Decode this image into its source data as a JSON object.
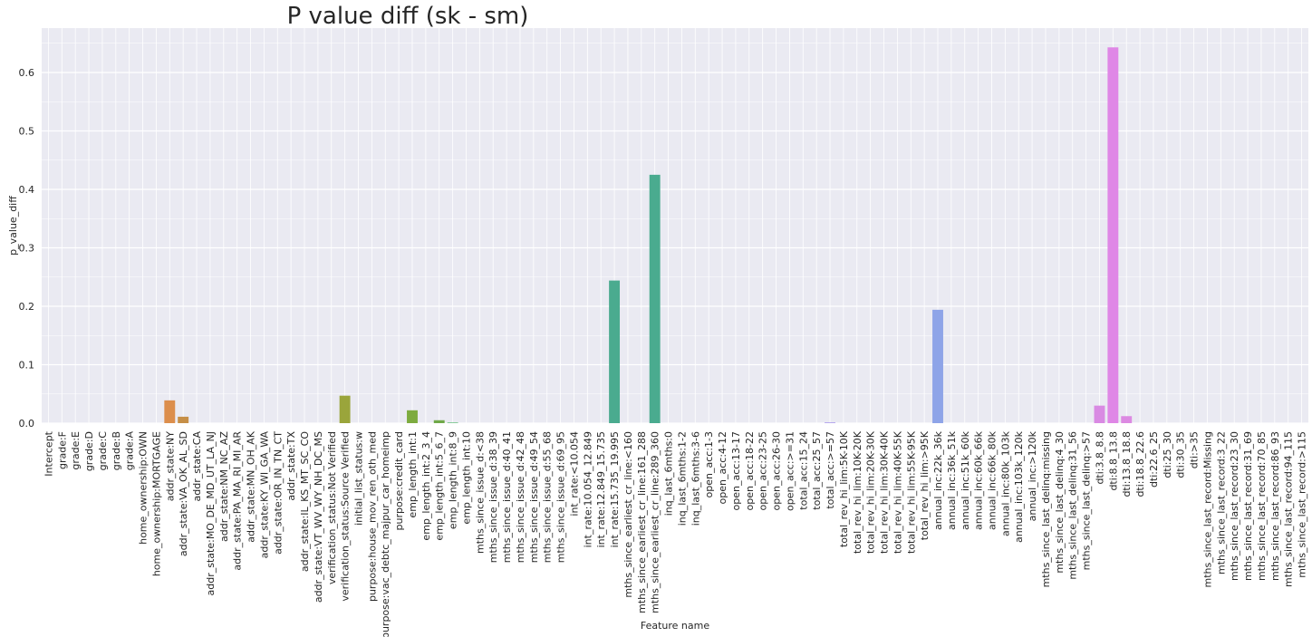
{
  "chart_data": {
    "type": "bar",
    "title": "P value diff (sk - sm)",
    "xlabel": "Feature name",
    "ylabel": "p_value_diff",
    "ylim": [
      0,
      0.68
    ],
    "yticks": [
      "0.0",
      "0.1",
      "0.2",
      "0.3",
      "0.4",
      "0.5",
      "0.6"
    ],
    "grid": true,
    "categories": [
      "Intercept",
      "grade:F",
      "grade:E",
      "grade:D",
      "grade:C",
      "grade:B",
      "grade:A",
      "home_ownership:OWN",
      "home_ownership:MORTGAGE",
      "addr_state:NY",
      "addr_state:VA_OK_AL_SD",
      "addr_state:CA",
      "addr_state:MO_DE_MD_UT_LA_NJ",
      "addr_state:NM_NC_AZ",
      "addr_state:PA_MA_RI_MI_AR",
      "addr_state:MN_OH_AK",
      "addr_state:KY_WI_GA_WA",
      "addr_state:OR_IN_TN_CT",
      "addr_state:TX",
      "addr_state:IL_KS_MT_SC_CO",
      "addr_state:VT_WV_WY_NH_DC_MS",
      "verification_status:Not Verified",
      "verification_status:Source Verified",
      "initial_list_status:w",
      "purpose:house_mov_ren_oth_med",
      "purpose:vac_debtc_majpur_car_homeimp",
      "purpose:credit_card",
      "emp_length_int:1",
      "emp_length_int:2_3_4",
      "emp_length_int:5_6_7",
      "emp_length_int:8_9",
      "emp_length_int:10",
      "mths_since_issue_d:<38",
      "mths_since_issue_d:38_39",
      "mths_since_issue_d:40_41",
      "mths_since_issue_d:42_48",
      "mths_since_issue_d:49_54",
      "mths_since_issue_d:55_68",
      "mths_since_issue_d:69_95",
      "int_rate:<10.054",
      "int_rate:10.054_12.849",
      "int_rate:12.849_15.735",
      "int_rate:15.735_19.995",
      "mths_since_earliest_cr_line:<160",
      "mths_since_earliest_cr_line:161_288",
      "mths_since_earliest_cr_line:289_360",
      "inq_last_6mths:0",
      "inq_last_6mths:1-2",
      "inq_last_6mths:3-6",
      "open_acc:1-3",
      "open_acc:4-12",
      "open_acc:13-17",
      "open_acc:18-22",
      "open_acc:23-25",
      "open_acc:26-30",
      "open_acc:>=31",
      "total_acc:15_24",
      "total_acc:25_57",
      "total_acc:>=57",
      "total_rev_hi_lim:5K-10K",
      "total_rev_hi_lim:10K-20K",
      "total_rev_hi_lim:20K-30K",
      "total_rev_hi_lim:30K-40K",
      "total_rev_hi_lim:40K-55K",
      "total_rev_hi_lim:55K-95K",
      "total_rev_hi_lim:>95K",
      "annual_inc:22k_36k",
      "annual_inc:36k_51k",
      "annual_inc:51k_60k",
      "annual_inc:60k_66k",
      "annual_inc:66k_80k",
      "annual_inc:80k_103k",
      "annual_inc:103k_120k",
      "annual_inc:>120k",
      "mths_since_last_delinq:missing",
      "mths_since_last_delinq:4_30",
      "mths_since_last_delinq:31_56",
      "mths_since_last_delinq:>57",
      "dti:3.8_8.8",
      "dti:8.8_13.8",
      "dti:13.8_18.8",
      "dti:18.8_22.6",
      "dti:22.6_25",
      "dti:25_30",
      "dti:30_35",
      "dti:>35",
      "mths_since_last_record:Missing",
      "mths_since_last_record:3_22",
      "mths_since_last_record:23_30",
      "mths_since_last_record:31_69",
      "mths_since_last_record:70_85",
      "mths_since_last_record:86_93",
      "mths_since_last_record:94_115",
      "mths_since_last_record:>115"
    ],
    "values": [
      0,
      0,
      0,
      0,
      0,
      0,
      0,
      0,
      0,
      0.039,
      0.011,
      0,
      0,
      0,
      0,
      0,
      0,
      0,
      0,
      0,
      0,
      0,
      0.047,
      0,
      0,
      0,
      0,
      0.022,
      0,
      0.005,
      0.001,
      0,
      0,
      0,
      0,
      0,
      0,
      0,
      0,
      0,
      0,
      0,
      0.244,
      0,
      0,
      0.425,
      0,
      0,
      0,
      0,
      0,
      0,
      0,
      0,
      0,
      0,
      0,
      0,
      0.001,
      0,
      0,
      0,
      0,
      0,
      0,
      0,
      0.194,
      0,
      0,
      0,
      0,
      0,
      0,
      0,
      0,
      0,
      0,
      0,
      0.03,
      0.643,
      0.012,
      0,
      0,
      0,
      0,
      0,
      0,
      0,
      0,
      0,
      0,
      0,
      0,
      0
    ],
    "colors": [
      "#e8837c",
      "#e5867a",
      "#e18a72",
      "#dc8f6c",
      "#d89265",
      "#d4955e",
      "#d0985a",
      "#cc9b52",
      "#c89e4c",
      "#dc8e4c",
      "#c68f47",
      "#bf9446",
      "#b99a44",
      "#b39e43",
      "#ada242",
      "#a7a541",
      "#a1a841",
      "#9aab42",
      "#94ad43",
      "#8daf45",
      "#86b148",
      "#9aa53b",
      "#9aa53b",
      "#7cb44a",
      "#73b64f",
      "#6ab754",
      "#61b85a",
      "#7dab3f",
      "#65b85c",
      "#6fa848",
      "#52b96a",
      "#4ab972",
      "#43ba7a",
      "#3fba82",
      "#3dba8a",
      "#3cb992",
      "#3cb99a",
      "#3db8a1",
      "#3fb7a8",
      "#41b6ae",
      "#43b5b4",
      "#45b4ba",
      "#4aab8f",
      "#4aad96",
      "#4db2c7",
      "#4aab8f",
      "#55adcf",
      "#5aabd3",
      "#5fa8d7",
      "#64a5db",
      "#69a2df",
      "#6f9fe2",
      "#759be5",
      "#7b97e7",
      "#8193e9",
      "#878fea",
      "#8d8bea",
      "#9387ea",
      "#9983e9",
      "#9f80e8",
      "#a57ce6",
      "#ab79e4",
      "#b076e1",
      "#b573de",
      "#ba70db",
      "#bf6ed7",
      "#8ea4e8",
      "#c86bcf",
      "#cc6acb",
      "#d069c6",
      "#d368c1",
      "#d668bc",
      "#d868b6",
      "#da68b1",
      "#dc69ab",
      "#dd6aa5",
      "#de6c9f",
      "#df6e99",
      "#d98ae3",
      "#df87e6",
      "#dc8ae2",
      "#e07b8b",
      "#e07d85",
      "#e07f80",
      "#e0817b",
      "#e08476",
      "#e08672",
      "#e0896d",
      "#e08c69",
      "#df8e65",
      "#de9162",
      "#dd945f",
      "#dc975c",
      "#da9a5a"
    ]
  }
}
